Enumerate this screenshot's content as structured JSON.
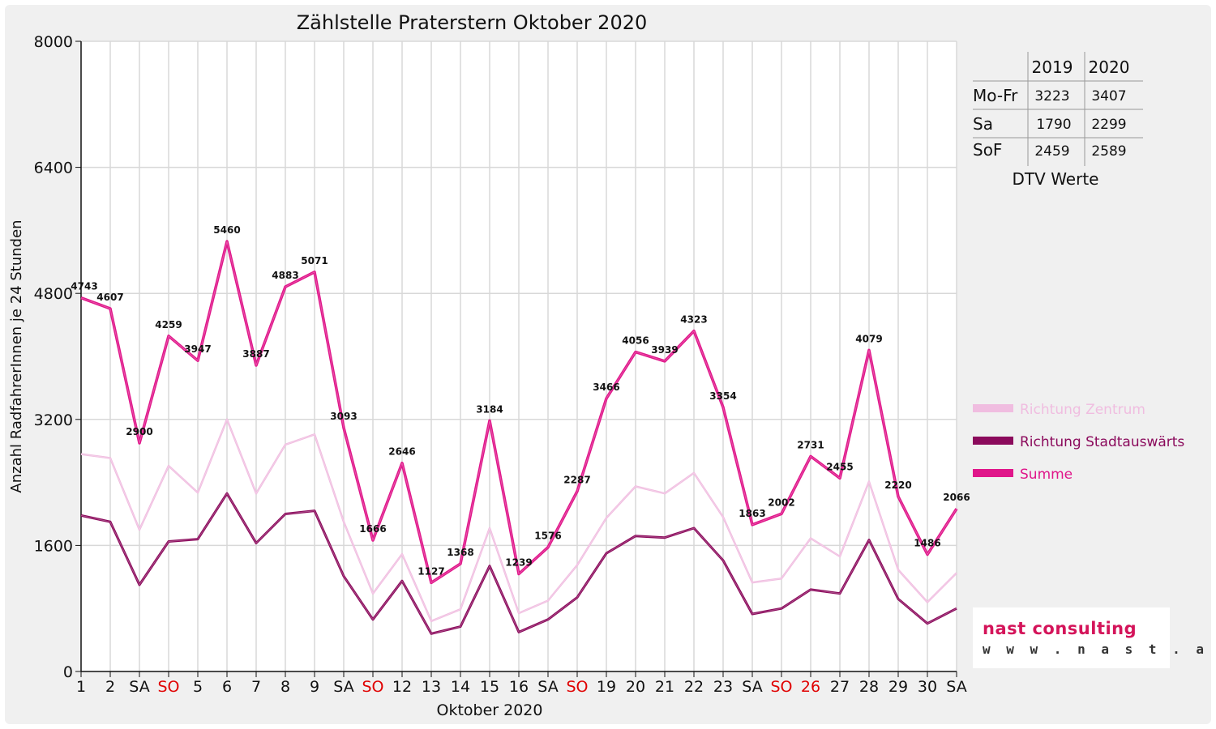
{
  "chart_data": {
    "type": "line",
    "title": "Zählstelle Praterstern Oktober 2020",
    "xlabel": "Oktober 2020",
    "ylabel": "Anzahl RadfahrerInnen je 24 Stunden",
    "ylim": [
      0,
      8000
    ],
    "yticks": [
      "0",
      "1600",
      "3200",
      "4800",
      "6400",
      "8000"
    ],
    "grid": true,
    "legend_position": "right",
    "categories": [
      "1",
      "2",
      "SA",
      "SO",
      "5",
      "6",
      "7",
      "8",
      "9",
      "SA",
      "SO",
      "12",
      "13",
      "14",
      "15",
      "16",
      "SA",
      "SO",
      "19",
      "20",
      "21",
      "22",
      "23",
      "SA",
      "SO",
      "26",
      "27",
      "28",
      "29",
      "30",
      "SA"
    ],
    "highlighted_categories": [
      3,
      10,
      17,
      24,
      25
    ],
    "highlight_color": "#e00000",
    "series": [
      {
        "name": "Richtung Zentrum",
        "color": "#f0bde0",
        "values": [
          2760,
          2710,
          1800,
          2610,
          2270,
          3200,
          2260,
          2880,
          3010,
          1900,
          990,
          1490,
          640,
          790,
          1820,
          740,
          900,
          1350,
          1950,
          2350,
          2260,
          2520,
          1960,
          1130,
          1180,
          1690,
          1460,
          2410,
          1290,
          880,
          1250
        ]
      },
      {
        "name": "Richtung Stadtauswärts",
        "color": "#8b0a5c",
        "values": [
          1980,
          1900,
          1100,
          1650,
          1680,
          2260,
          1630,
          2000,
          2040,
          1210,
          660,
          1150,
          480,
          570,
          1340,
          500,
          660,
          940,
          1500,
          1720,
          1700,
          1820,
          1410,
          730,
          800,
          1040,
          990,
          1670,
          920,
          610,
          800
        ]
      },
      {
        "name": "Summe",
        "color": "#e0168a",
        "values": [
          4743,
          4607,
          2900,
          4259,
          3947,
          5460,
          3887,
          4883,
          5071,
          3093,
          1666,
          2646,
          1127,
          1368,
          3184,
          1239,
          1576,
          2287,
          3466,
          4056,
          3939,
          4323,
          3354,
          1863,
          2002,
          2731,
          2455,
          4079,
          2220,
          1486,
          2066
        ],
        "data_labels": [
          "4743",
          "4607",
          "2900",
          "4259",
          "3947",
          "5460",
          "3887",
          "4883",
          "5071",
          "3093",
          "1666",
          "2646",
          "1127",
          "1368",
          "3184",
          "1239",
          "1576",
          "2287",
          "3466",
          "4056",
          "3939",
          "4323",
          "3354",
          "1863",
          "2002",
          "2731",
          "2455",
          "4079",
          "2220",
          "1486",
          "2066"
        ]
      }
    ],
    "dtv_table": {
      "caption": "DTV Werte",
      "headers": [
        "",
        "2019",
        "2020"
      ],
      "rows": [
        {
          "label": "Mo-Fr",
          "v2019": "3223",
          "v2020": "3407"
        },
        {
          "label": "Sa",
          "v2019": "1790",
          "v2020": "2299"
        },
        {
          "label": "SoF",
          "v2019": "2459",
          "v2020": "2589"
        }
      ]
    }
  },
  "logo": {
    "name": "nast consulting",
    "url": "w w w . n a s t . a t"
  }
}
